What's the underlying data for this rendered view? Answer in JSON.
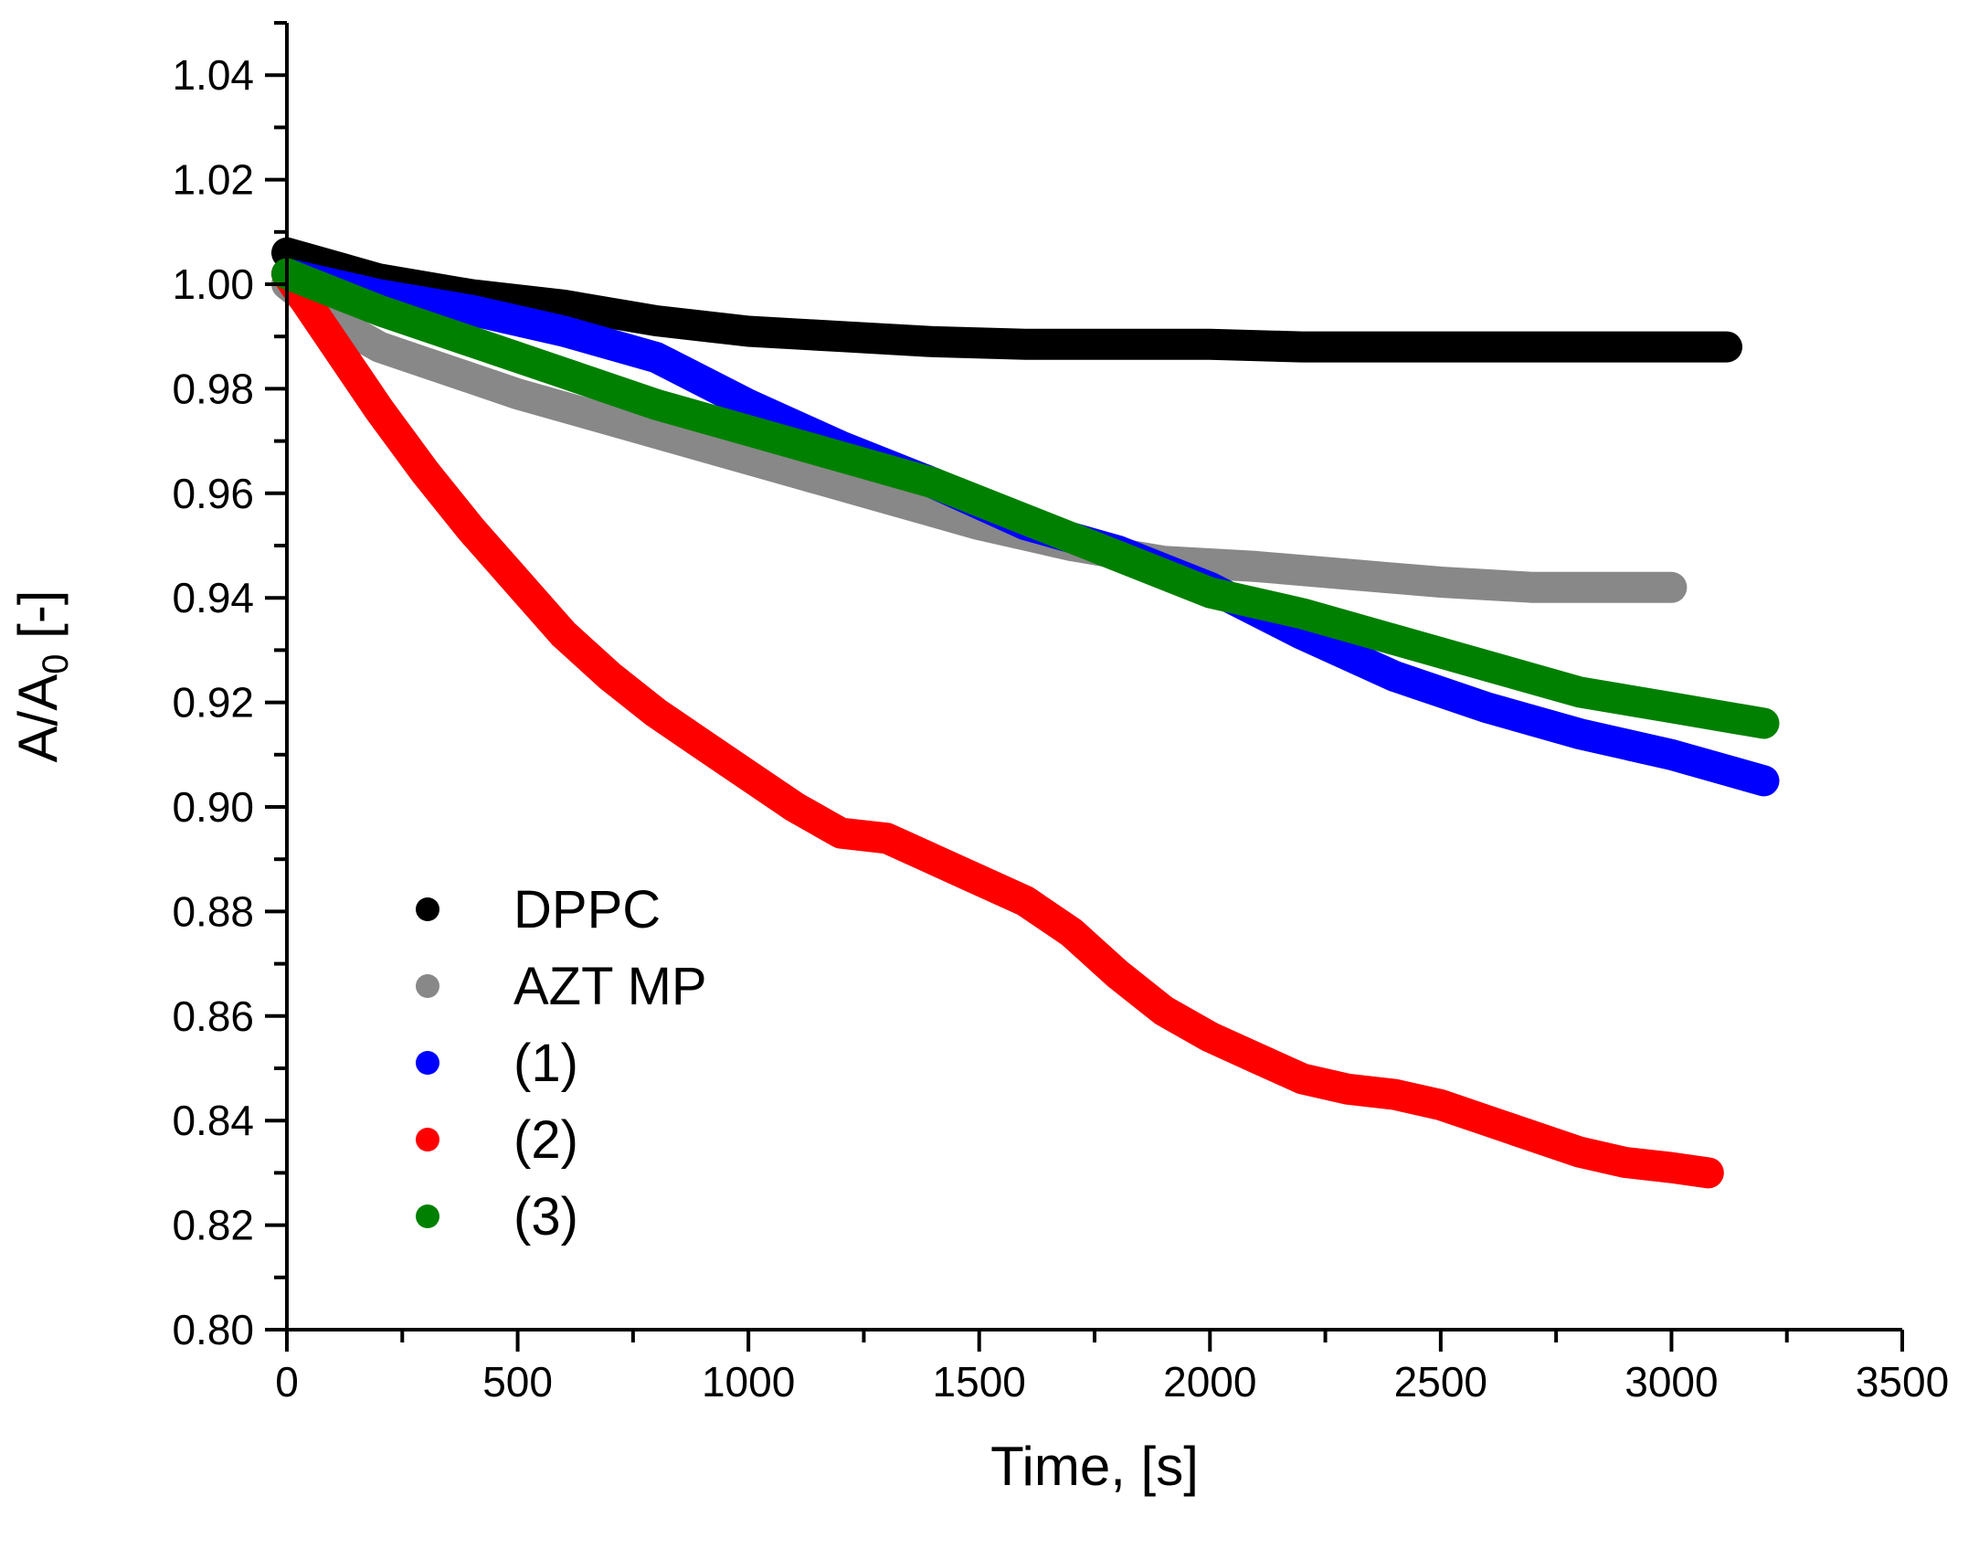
{
  "chart_data": {
    "type": "scatter",
    "title": "",
    "xlabel": "Time, [s]",
    "ylabel": "A/A",
    "ylabel_subscript": "0",
    "ylabel_suffix": " [-]",
    "xlim": [
      0,
      3500
    ],
    "ylim": [
      0.8,
      1.05
    ],
    "xticks": [
      0,
      500,
      1000,
      1500,
      2000,
      2500,
      3000,
      3500
    ],
    "xtick_labels": [
      "0",
      "500",
      "1000",
      "1500",
      "2000",
      "2500",
      "3000",
      "3500"
    ],
    "yticks": [
      0.8,
      0.82,
      0.84,
      0.86,
      0.88,
      0.9,
      0.92,
      0.94,
      0.96,
      0.98,
      1.0,
      1.02,
      1.04
    ],
    "ytick_labels": [
      "0.80",
      "0.82",
      "0.84",
      "0.86",
      "0.88",
      "0.90",
      "0.92",
      "0.94",
      "0.96",
      "0.98",
      "1.00",
      "1.02",
      "1.04"
    ],
    "grid": false,
    "legend_position": "bottom-left",
    "series": [
      {
        "name": "DPPC",
        "color": "#000000",
        "x": [
          0,
          200,
          400,
          600,
          800,
          1000,
          1200,
          1400,
          1600,
          1800,
          2000,
          2200,
          2400,
          2600,
          2800,
          3000,
          3120
        ],
        "y": [
          1.006,
          1.001,
          0.998,
          0.996,
          0.993,
          0.991,
          0.99,
          0.989,
          0.9885,
          0.9885,
          0.9885,
          0.988,
          0.988,
          0.988,
          0.988,
          0.988,
          0.988
        ]
      },
      {
        "name": "AZT MP",
        "color": "#888888",
        "x": [
          0,
          100,
          200,
          300,
          500,
          700,
          900,
          1100,
          1300,
          1500,
          1700,
          1900,
          2100,
          2300,
          2500,
          2700,
          2900,
          3000
        ],
        "y": [
          1.0,
          0.993,
          0.988,
          0.985,
          0.979,
          0.974,
          0.969,
          0.964,
          0.959,
          0.954,
          0.95,
          0.947,
          0.946,
          0.9445,
          0.943,
          0.942,
          0.942,
          0.942
        ]
      },
      {
        "name": "(1)",
        "color": "#0000ff",
        "x": [
          0,
          200,
          400,
          600,
          800,
          1000,
          1200,
          1400,
          1600,
          1800,
          2000,
          2200,
          2400,
          2600,
          2800,
          3000,
          3200
        ],
        "y": [
          1.002,
          0.998,
          0.995,
          0.991,
          0.986,
          0.977,
          0.969,
          0.962,
          0.954,
          0.949,
          0.942,
          0.933,
          0.925,
          0.919,
          0.914,
          0.91,
          0.905
        ]
      },
      {
        "name": "(2)",
        "color": "#ff0000",
        "x": [
          0,
          100,
          200,
          300,
          400,
          500,
          600,
          700,
          800,
          900,
          1000,
          1100,
          1200,
          1300,
          1400,
          1500,
          1600,
          1700,
          1800,
          1900,
          2000,
          2100,
          2200,
          2300,
          2400,
          2500,
          2600,
          2700,
          2800,
          2900,
          3000,
          3080
        ],
        "y": [
          1.002,
          0.989,
          0.976,
          0.964,
          0.953,
          0.943,
          0.933,
          0.925,
          0.918,
          0.912,
          0.906,
          0.9,
          0.895,
          0.894,
          0.89,
          0.886,
          0.882,
          0.876,
          0.868,
          0.861,
          0.856,
          0.852,
          0.848,
          0.846,
          0.845,
          0.843,
          0.84,
          0.837,
          0.834,
          0.832,
          0.831,
          0.83
        ]
      },
      {
        "name": "(3)",
        "color": "#008000",
        "x": [
          0,
          200,
          400,
          600,
          800,
          1000,
          1200,
          1400,
          1600,
          1800,
          2000,
          2200,
          2400,
          2600,
          2800,
          3000,
          3200
        ],
        "y": [
          1.002,
          0.995,
          0.989,
          0.983,
          0.977,
          0.972,
          0.967,
          0.962,
          0.955,
          0.948,
          0.941,
          0.937,
          0.932,
          0.927,
          0.922,
          0.919,
          0.916
        ]
      }
    ]
  }
}
